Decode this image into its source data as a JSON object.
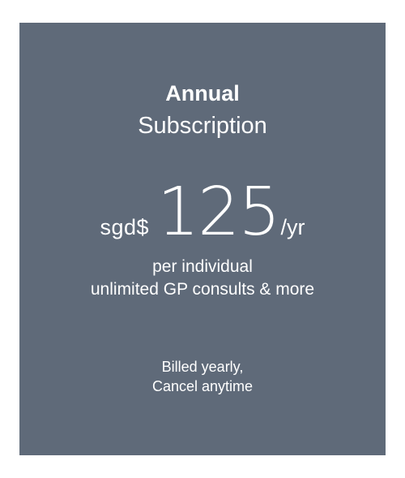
{
  "card": {
    "background": "#5f6a79",
    "text_color": "#ffffff",
    "plan_name": "Annual",
    "plan_kind": "Subscription",
    "price": {
      "currency": "sgd$",
      "amount": "125",
      "period": "/yr"
    },
    "description": {
      "line1": "per individual",
      "line2": "unlimited GP consults & more"
    },
    "billing": {
      "line1": "Billed yearly,",
      "line2": "Cancel anytime"
    }
  }
}
